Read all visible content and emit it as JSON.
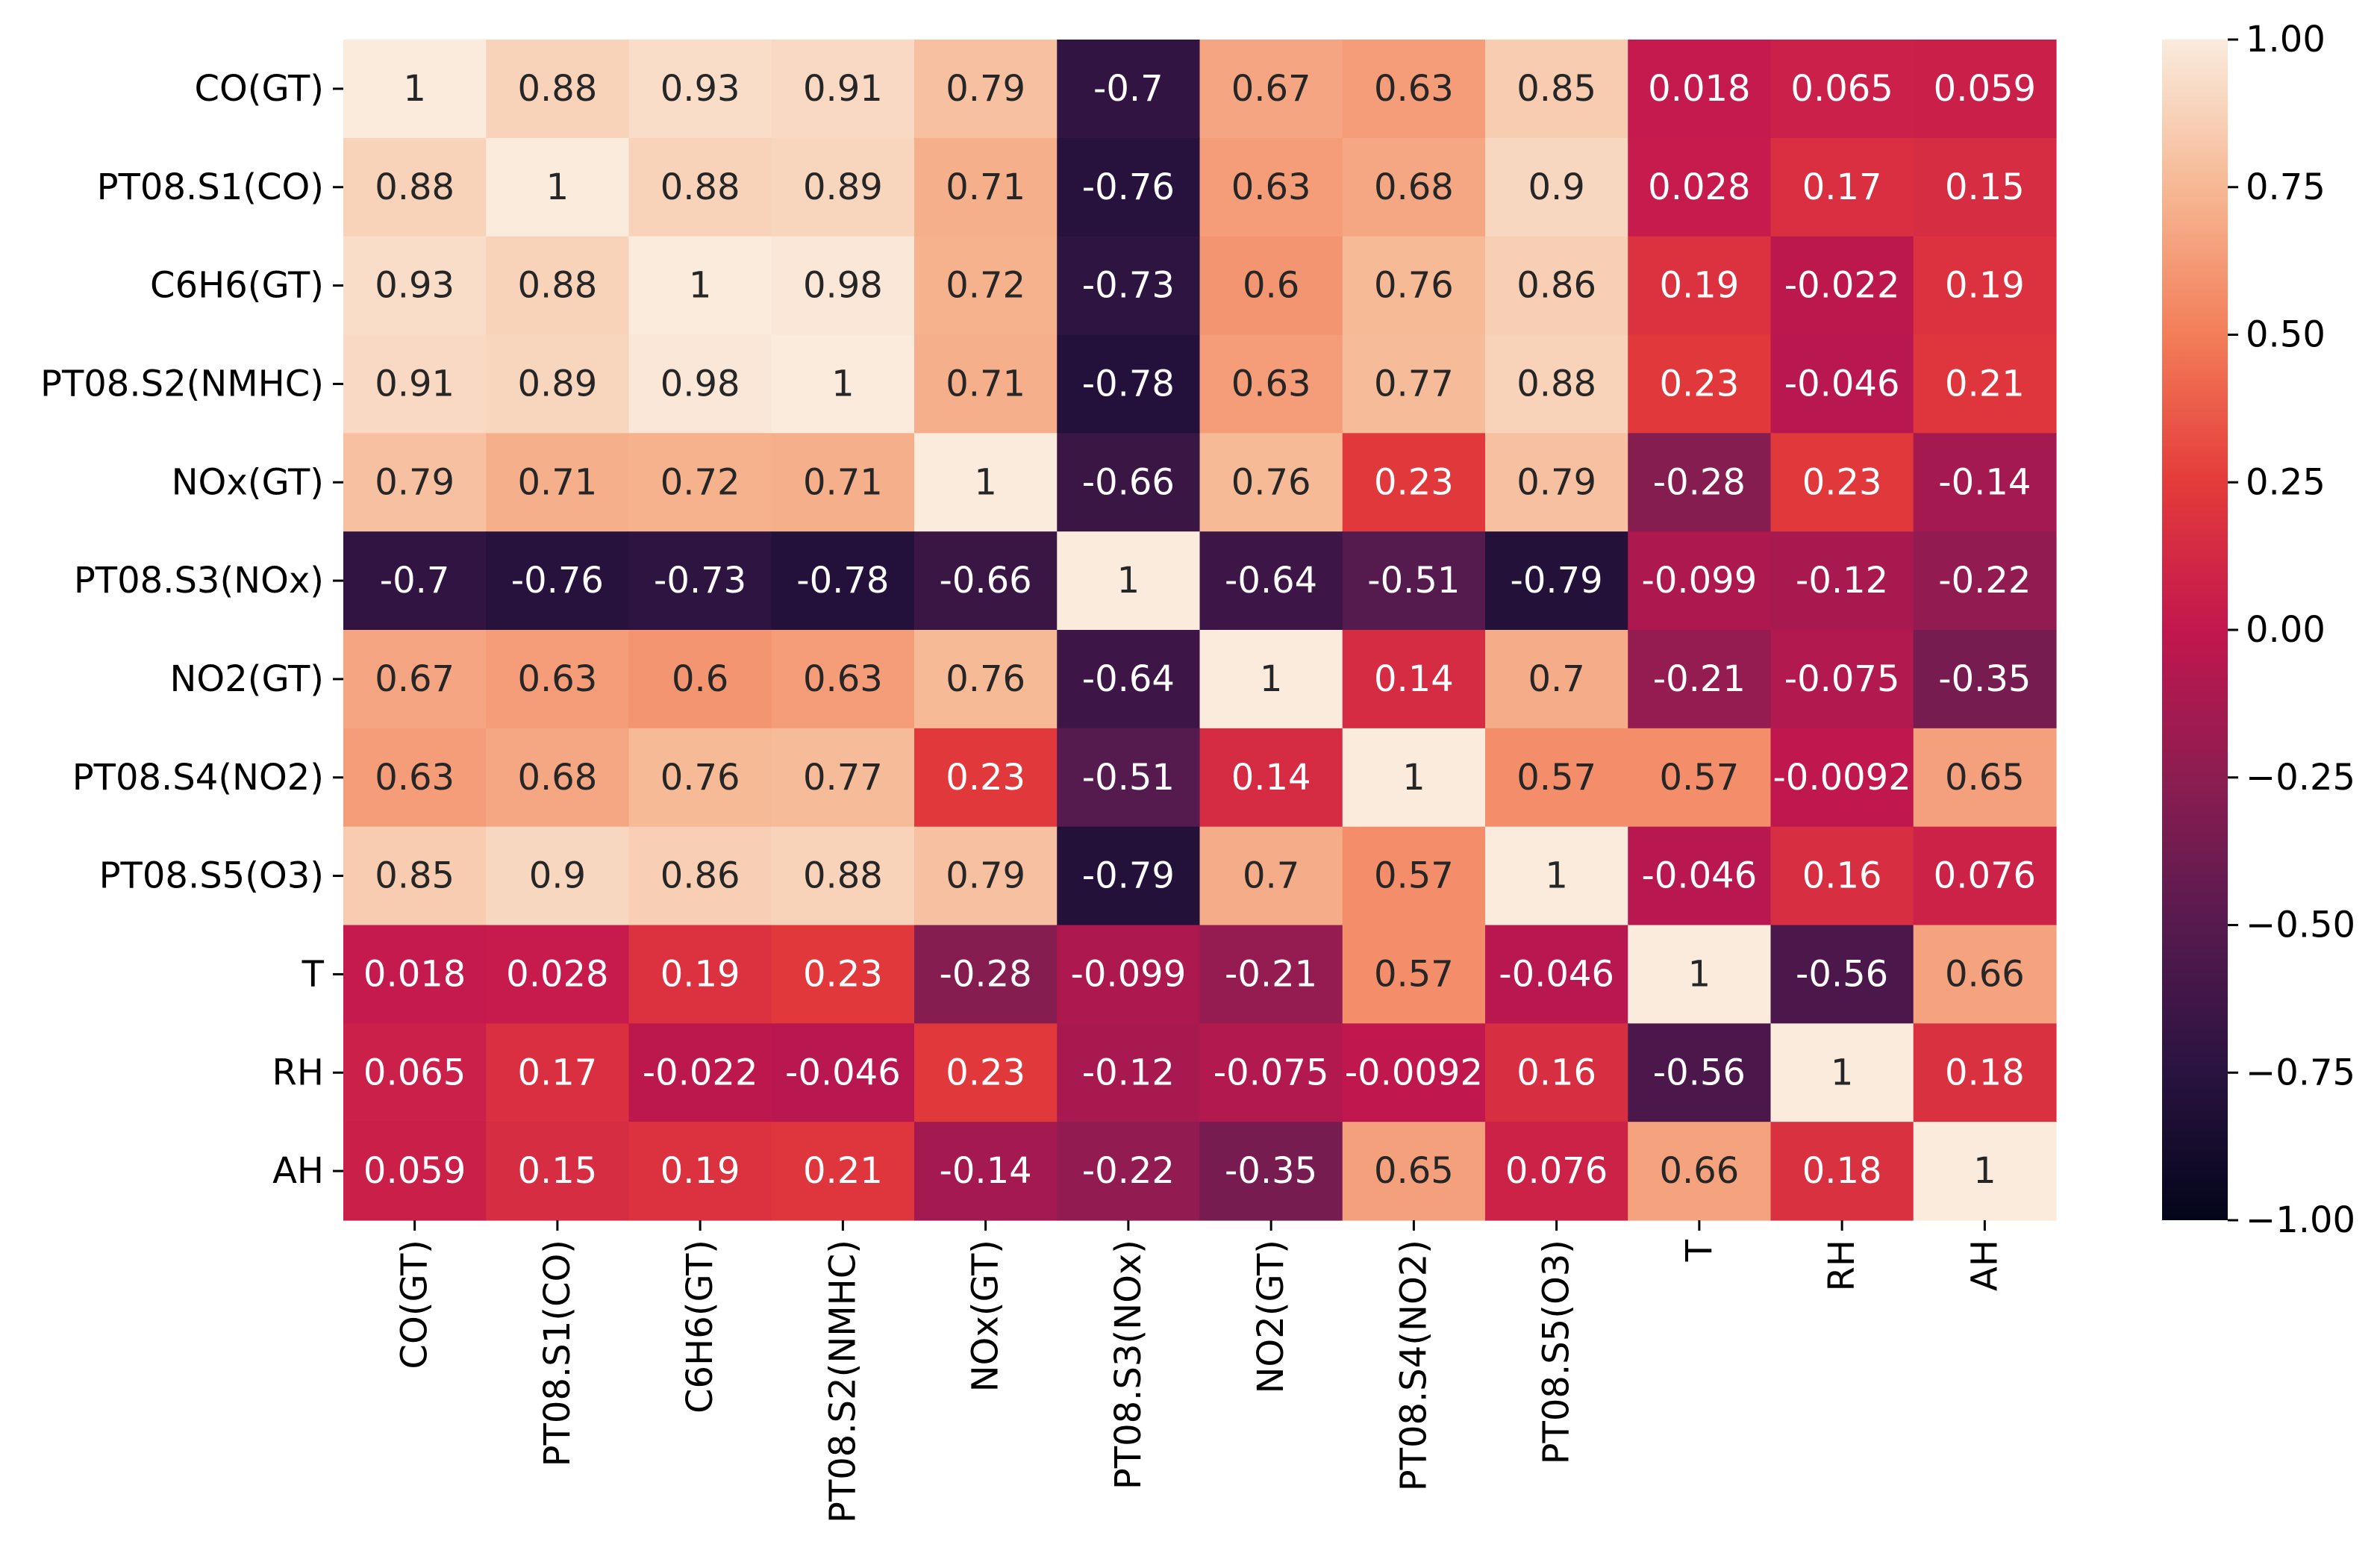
{
  "chart_data": {
    "type": "heatmap",
    "title": "",
    "xlabel": "",
    "ylabel": "",
    "rows": [
      "CO(GT)",
      "PT08.S1(CO)",
      "C6H6(GT)",
      "PT08.S2(NMHC)",
      "NOx(GT)",
      "PT08.S3(NOx)",
      "NO2(GT)",
      "PT08.S4(NO2)",
      "PT08.S5(O3)",
      "T",
      "RH",
      "AH"
    ],
    "columns": [
      "CO(GT)",
      "PT08.S1(CO)",
      "C6H6(GT)",
      "PT08.S2(NMHC)",
      "NOx(GT)",
      "PT08.S3(NOx)",
      "NO2(GT)",
      "PT08.S4(NO2)",
      "PT08.S5(O3)",
      "T",
      "RH",
      "AH"
    ],
    "values": [
      [
        1,
        0.88,
        0.93,
        0.91,
        0.79,
        -0.7,
        0.67,
        0.63,
        0.85,
        0.018,
        0.065,
        0.059
      ],
      [
        0.88,
        1,
        0.88,
        0.89,
        0.71,
        -0.76,
        0.63,
        0.68,
        0.9,
        0.028,
        0.17,
        0.15
      ],
      [
        0.93,
        0.88,
        1,
        0.98,
        0.72,
        -0.73,
        0.6,
        0.76,
        0.86,
        0.19,
        -0.022,
        0.19
      ],
      [
        0.91,
        0.89,
        0.98,
        1,
        0.71,
        -0.78,
        0.63,
        0.77,
        0.88,
        0.23,
        -0.046,
        0.21
      ],
      [
        0.79,
        0.71,
        0.72,
        0.71,
        1,
        -0.66,
        0.76,
        0.23,
        0.79,
        -0.28,
        0.23,
        -0.14
      ],
      [
        -0.7,
        -0.76,
        -0.73,
        -0.78,
        -0.66,
        1,
        -0.64,
        -0.51,
        -0.79,
        -0.099,
        -0.12,
        -0.22
      ],
      [
        0.67,
        0.63,
        0.6,
        0.63,
        0.76,
        -0.64,
        1,
        0.14,
        0.7,
        -0.21,
        -0.075,
        -0.35
      ],
      [
        0.63,
        0.68,
        0.76,
        0.77,
        0.23,
        -0.51,
        0.14,
        1,
        0.57,
        0.57,
        -0.0092,
        0.65
      ],
      [
        0.85,
        0.9,
        0.86,
        0.88,
        0.79,
        -0.79,
        0.7,
        0.57,
        1,
        -0.046,
        0.16,
        0.076
      ],
      [
        0.018,
        0.028,
        0.19,
        0.23,
        -0.28,
        -0.099,
        -0.21,
        0.57,
        -0.046,
        1,
        -0.56,
        0.66
      ],
      [
        0.065,
        0.17,
        -0.022,
        -0.046,
        0.23,
        -0.12,
        -0.075,
        -0.0092,
        0.16,
        -0.56,
        1,
        0.18
      ],
      [
        0.059,
        0.15,
        0.19,
        0.21,
        -0.14,
        -0.22,
        -0.35,
        0.65,
        0.076,
        0.66,
        0.18,
        1
      ]
    ],
    "color_range": [
      -1.0,
      1.0
    ],
    "colorbar_ticks": [
      "1.00",
      "0.75",
      "0.50",
      "0.25",
      "0.00",
      "−0.25",
      "−0.50",
      "−0.75",
      "−1.00"
    ],
    "colormap": "rocket",
    "colorbar_placement": "right",
    "grid": false
  }
}
